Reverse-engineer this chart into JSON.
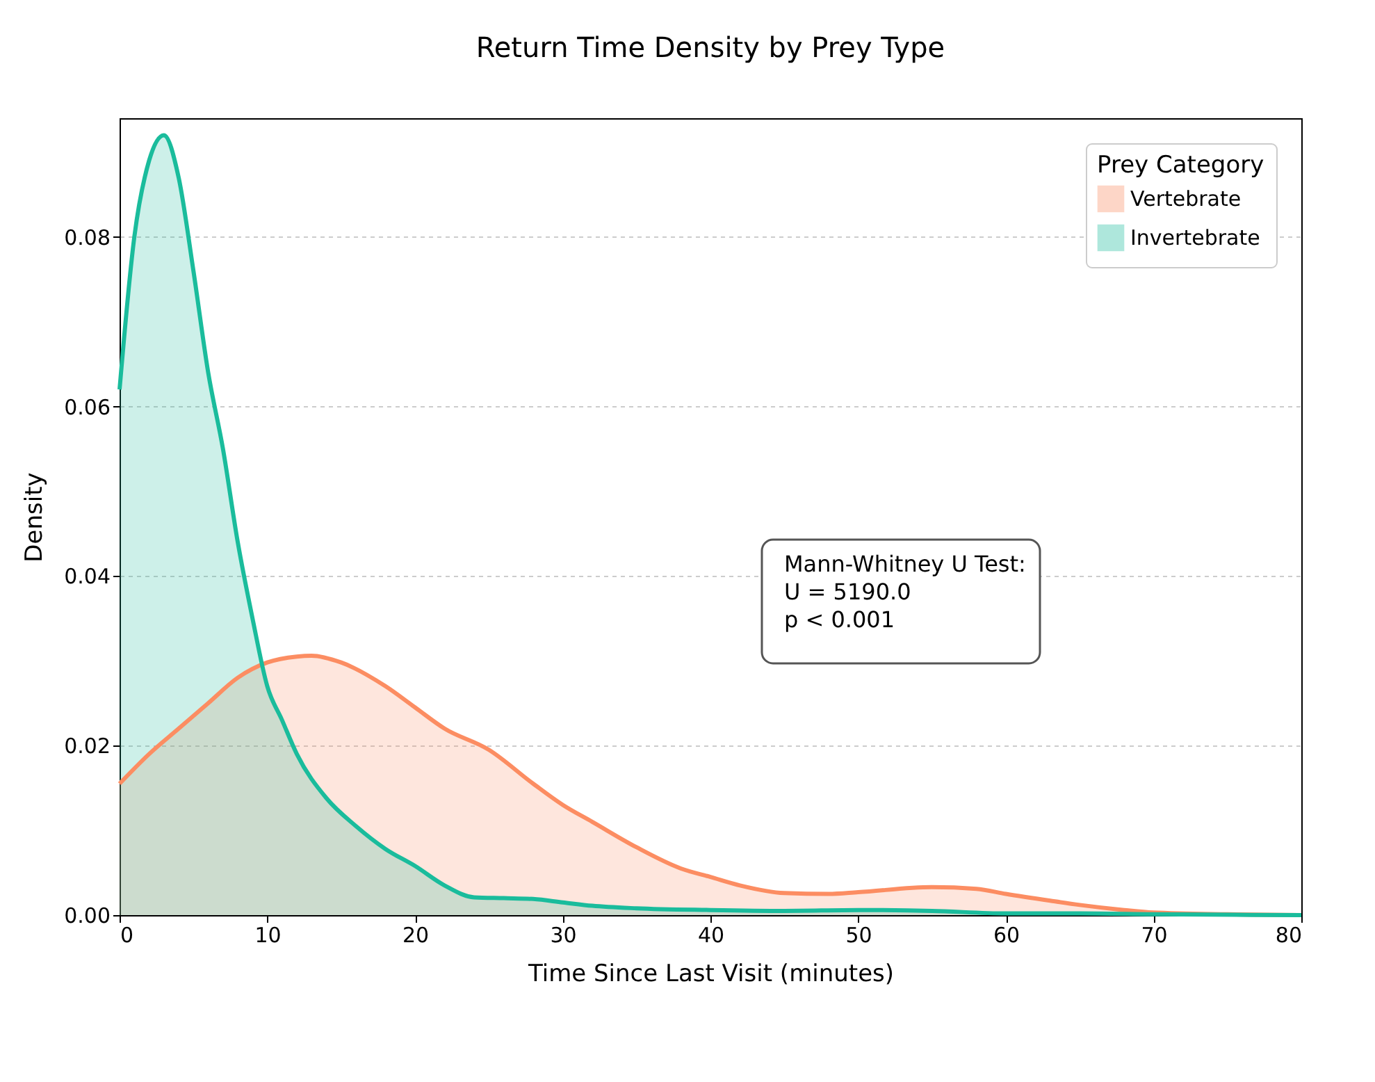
{
  "chart_data": {
    "type": "area",
    "title": "Return Time Density by Prey Type",
    "xlabel": "Time Since Last Visit (minutes)",
    "ylabel": "Density",
    "legend_title": "Prey Category",
    "legend": "top right",
    "grid": "y",
    "xlim": [
      0,
      80
    ],
    "xticks": [
      0,
      10,
      20,
      30,
      40,
      50,
      60,
      70,
      80
    ],
    "ylim": [
      0,
      0.094
    ],
    "yticks": [
      {
        "value": 0,
        "label": "0.00"
      },
      {
        "value": 0.02,
        "label": "0.02"
      },
      {
        "value": 0.04,
        "label": "0.04"
      },
      {
        "value": 0.06,
        "label": "0.06"
      },
      {
        "value": 0.08,
        "label": "0.08"
      }
    ],
    "annotations": [
      "Mann-Whitney U Test:\nU = 5190.0\np < 0.001"
    ],
    "series": [
      {
        "name": "Vertebrate",
        "color": "#fc8d62",
        "x": [
          0,
          2,
          4,
          6,
          8,
          10,
          12,
          13,
          15,
          18,
          20,
          22,
          25,
          28,
          30,
          32,
          35,
          38,
          40,
          42,
          45,
          48,
          50,
          55,
          58,
          60,
          63,
          65,
          68,
          70,
          75,
          80
        ],
        "values": [
          0.0155,
          0.019,
          0.022,
          0.025,
          0.028,
          0.0298,
          0.0305,
          0.0306,
          0.0298,
          0.027,
          0.0245,
          0.022,
          0.0195,
          0.0155,
          0.013,
          0.011,
          0.008,
          0.0055,
          0.0045,
          0.0035,
          0.0026,
          0.0025,
          0.0027,
          0.0033,
          0.0031,
          0.0025,
          0.0017,
          0.0012,
          0.0006,
          0.0003,
          0.0001,
          0
        ]
      },
      {
        "name": "Invertebrate",
        "color": "#1abc9c",
        "x": [
          0,
          1,
          2,
          3,
          4,
          5,
          6,
          7,
          8,
          9,
          10,
          11,
          12,
          14,
          16,
          18,
          20,
          22,
          24,
          26,
          28,
          30,
          32,
          35,
          40,
          45,
          50,
          55,
          60,
          65,
          70,
          80
        ],
        "values": [
          0.062,
          0.08,
          0.089,
          0.092,
          0.087,
          0.076,
          0.064,
          0.055,
          0.044,
          0.035,
          0.027,
          0.023,
          0.019,
          0.0138,
          0.0105,
          0.0078,
          0.0058,
          0.0035,
          0.0021,
          0.002,
          0.0019,
          0.0015,
          0.0011,
          0.0008,
          0.0006,
          0.0005,
          0.0006,
          0.0005,
          0.0002,
          0.0002,
          0.0001,
          0
        ]
      }
    ]
  }
}
